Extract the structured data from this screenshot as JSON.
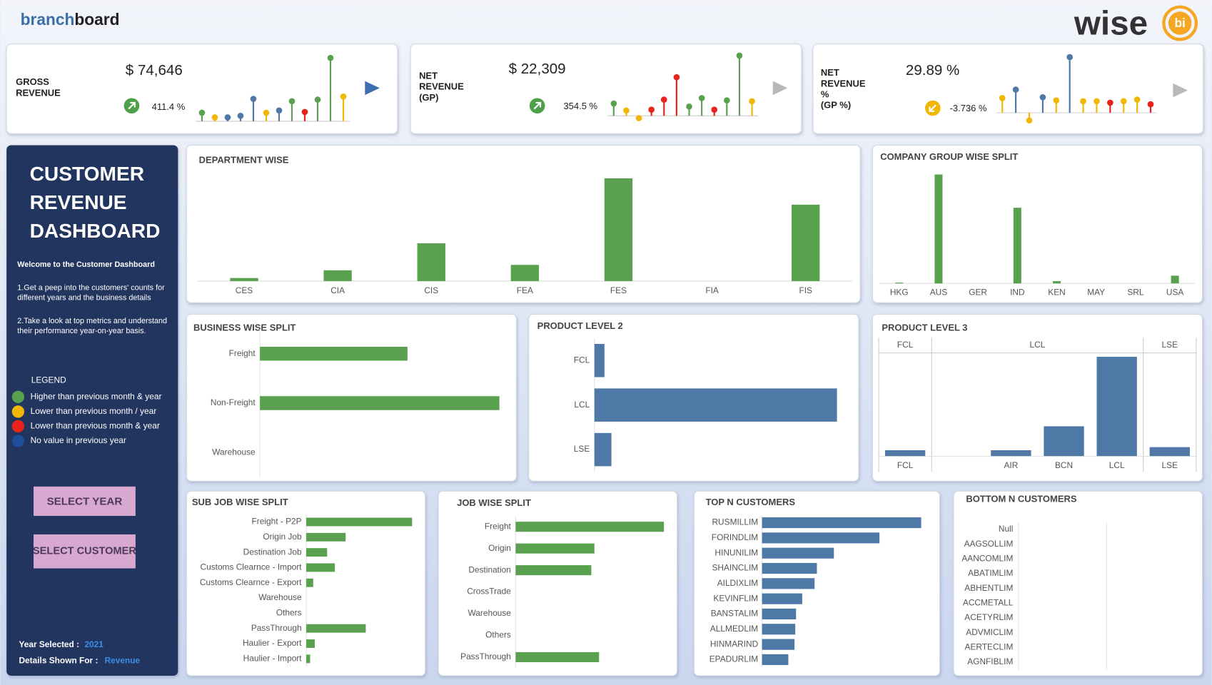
{
  "header": {
    "brand_a": "branch",
    "brand_b": "board",
    "logo_word": "wise",
    "logo_badge": "bi"
  },
  "kpis": [
    {
      "title": [
        "GROSS",
        "REVENUE"
      ],
      "value": "$ 74,646",
      "change": "411.4 %",
      "trend": "up"
    },
    {
      "title": [
        "NET",
        "REVENUE",
        "(GP)"
      ],
      "value": "$ 22,309",
      "change": "354.5 %",
      "trend": "up"
    },
    {
      "title": [
        "NET",
        "REVENUE",
        "%",
        "(GP %)"
      ],
      "value": "29.89 %",
      "change": "-3.736 %",
      "trend": "down"
    }
  ],
  "sidebar": {
    "title": [
      "CUSTOMER",
      "REVENUE",
      "DASHBOARD"
    ],
    "welcome": "Welcome to the Customer Dashboard",
    "point1": [
      "1.Get a peep into the customers' counts for",
      "different years and the business details"
    ],
    "point2": [
      "2.Take a look at top metrics and understand",
      "their performance year-on-year basis."
    ],
    "legend_title": "LEGEND",
    "legend": [
      {
        "label": "Higher than previous month & year",
        "color": "#59a14f"
      },
      {
        "label": "Lower than previous month / year",
        "color": "#f2b705"
      },
      {
        "label": "Lower than previous month & year",
        "color": "#e8231c"
      },
      {
        "label": "No value in previous year",
        "color": "#1f4e9a"
      }
    ],
    "buttons": [
      "SELECT YEAR",
      "SELECT CUSTOMER"
    ],
    "year_label": "Year Selected :",
    "year": "2021",
    "details_label": "Details Shown For :",
    "details": "Revenue"
  },
  "chart_data": [
    {
      "type": "lollipop",
      "values": [
        11,
        5,
        5,
        7,
        29,
        11,
        14,
        26,
        12,
        28,
        82,
        32
      ],
      "colors": [
        "#59a14f",
        "#f2b705",
        "#4e79a7",
        "#4e79a7",
        "#4e79a7",
        "#f2b705",
        "#4e79a7",
        "#59a14f",
        "#e8231c",
        "#59a14f",
        "#59a14f",
        "#f2b705"
      ]
    },
    {
      "type": "lollipop",
      "values": [
        16,
        7,
        -3,
        8,
        21,
        50,
        12,
        23,
        8,
        20,
        78,
        19
      ],
      "colors": [
        "#59a14f",
        "#f2b705",
        "#f2b705",
        "#e8231c",
        "#e8231c",
        "#e8231c",
        "#59a14f",
        "#59a14f",
        "#e8231c",
        "#59a14f",
        "#59a14f",
        "#f2b705"
      ]
    },
    {
      "type": "lollipop",
      "values": [
        19,
        30,
        -10,
        20,
        16,
        72,
        15,
        15,
        13,
        15,
        17,
        11
      ],
      "colors": [
        "#f2b705",
        "#4e79a7",
        "#f2b705",
        "#4e79a7",
        "#f2b705",
        "#4e79a7",
        "#f2b705",
        "#f2b705",
        "#e8231c",
        "#f2b705",
        "#f2b705",
        "#e8231c"
      ]
    },
    {
      "type": "bar",
      "title": "DEPARTMENT WISE",
      "color": "#59a14f",
      "categories": [
        "CES",
        "CIA",
        "CIS",
        "FEA",
        "FES",
        "FIA",
        "FIS"
      ],
      "values": [
        4,
        14,
        49,
        21,
        133,
        0,
        99
      ]
    },
    {
      "type": "bar",
      "title": "COMPANY GROUP WISE SPLIT",
      "color": "#59a14f",
      "categories": [
        "HKG",
        "AUS",
        "GER",
        "IND",
        "KEN",
        "MAY",
        "SRL",
        "USA"
      ],
      "values": [
        1,
        141,
        0,
        98,
        3,
        0,
        0,
        10
      ]
    },
    {
      "type": "hbar",
      "title": "BUSINESS WISE SPLIT",
      "color": "#59a14f",
      "categories": [
        "Freight",
        "Non-Freight",
        "Warehouse"
      ],
      "values": [
        191,
        310,
        0
      ]
    },
    {
      "type": "hbar",
      "title": "PRODUCT LEVEL 2",
      "color": "#4e79a7",
      "categories": [
        "FCL",
        "LCL",
        "LSE"
      ],
      "values": [
        13,
        314,
        22
      ]
    },
    {
      "type": "grouped_bar",
      "title": "PRODUCT LEVEL 3",
      "color": "#4e79a7",
      "groups": [
        {
          "name": "FCL",
          "categories": [
            "FCL"
          ],
          "values": [
            8
          ]
        },
        {
          "name": "LCL",
          "categories": [
            null,
            "AIR",
            "BCN",
            "LCL"
          ],
          "values": [
            null,
            8,
            39,
            129
          ]
        },
        {
          "name": "LSE",
          "categories": [
            "LSE"
          ],
          "values": [
            12
          ]
        }
      ]
    },
    {
      "type": "hbar",
      "title": "SUB JOB WISE SPLIT",
      "color": "#59a14f",
      "categories": [
        "Freight - P2P",
        "Origin Job",
        "Destination Job",
        "Customs Clearnce - Import",
        "Customs Clearnce - Export",
        "Warehouse",
        "Others",
        "PassThrough",
        "Haulier - Export",
        "Haulier - Import"
      ],
      "values": [
        137,
        51,
        27,
        37,
        9,
        0,
        0,
        77,
        11,
        5
      ]
    },
    {
      "type": "hbar",
      "title": "JOB WISE SPLIT",
      "color": "#59a14f",
      "categories": [
        "Freight",
        "Origin",
        "Destination",
        "CrossTrade",
        "Warehouse",
        "Others",
        "PassThrough"
      ],
      "values": [
        192,
        102,
        98,
        0,
        0,
        0,
        108
      ]
    },
    {
      "type": "hbar",
      "title": "TOP N CUSTOMERS",
      "color": "#4e79a7",
      "categories": [
        "RUSMILLIM",
        "FORINDLIM",
        "HINUNILIM",
        "SHAINCLIM",
        "AILDIXLIM",
        "KEVINFLIM",
        "BANSTALIM",
        "ALLMEDLIM",
        "HINMARIND",
        "EPADURLIM"
      ],
      "values": [
        206,
        152,
        93,
        71,
        68,
        52,
        44,
        43,
        42,
        34
      ]
    },
    {
      "type": "hbar",
      "title": "BOTTOM N CUSTOMERS",
      "color": "#4e79a7",
      "categories": [
        "Null",
        "AAGSOLLIM",
        "AANCOMLIM",
        "ABATIMLIM",
        "ABHENTLIM",
        "ACCMETALL",
        "ACETYRLIM",
        "ADVMICLIM",
        "AERTECLIM",
        "AGNFIBLIM"
      ],
      "values": [
        0,
        0,
        0,
        0,
        0,
        0,
        0,
        0,
        0,
        0
      ]
    }
  ]
}
